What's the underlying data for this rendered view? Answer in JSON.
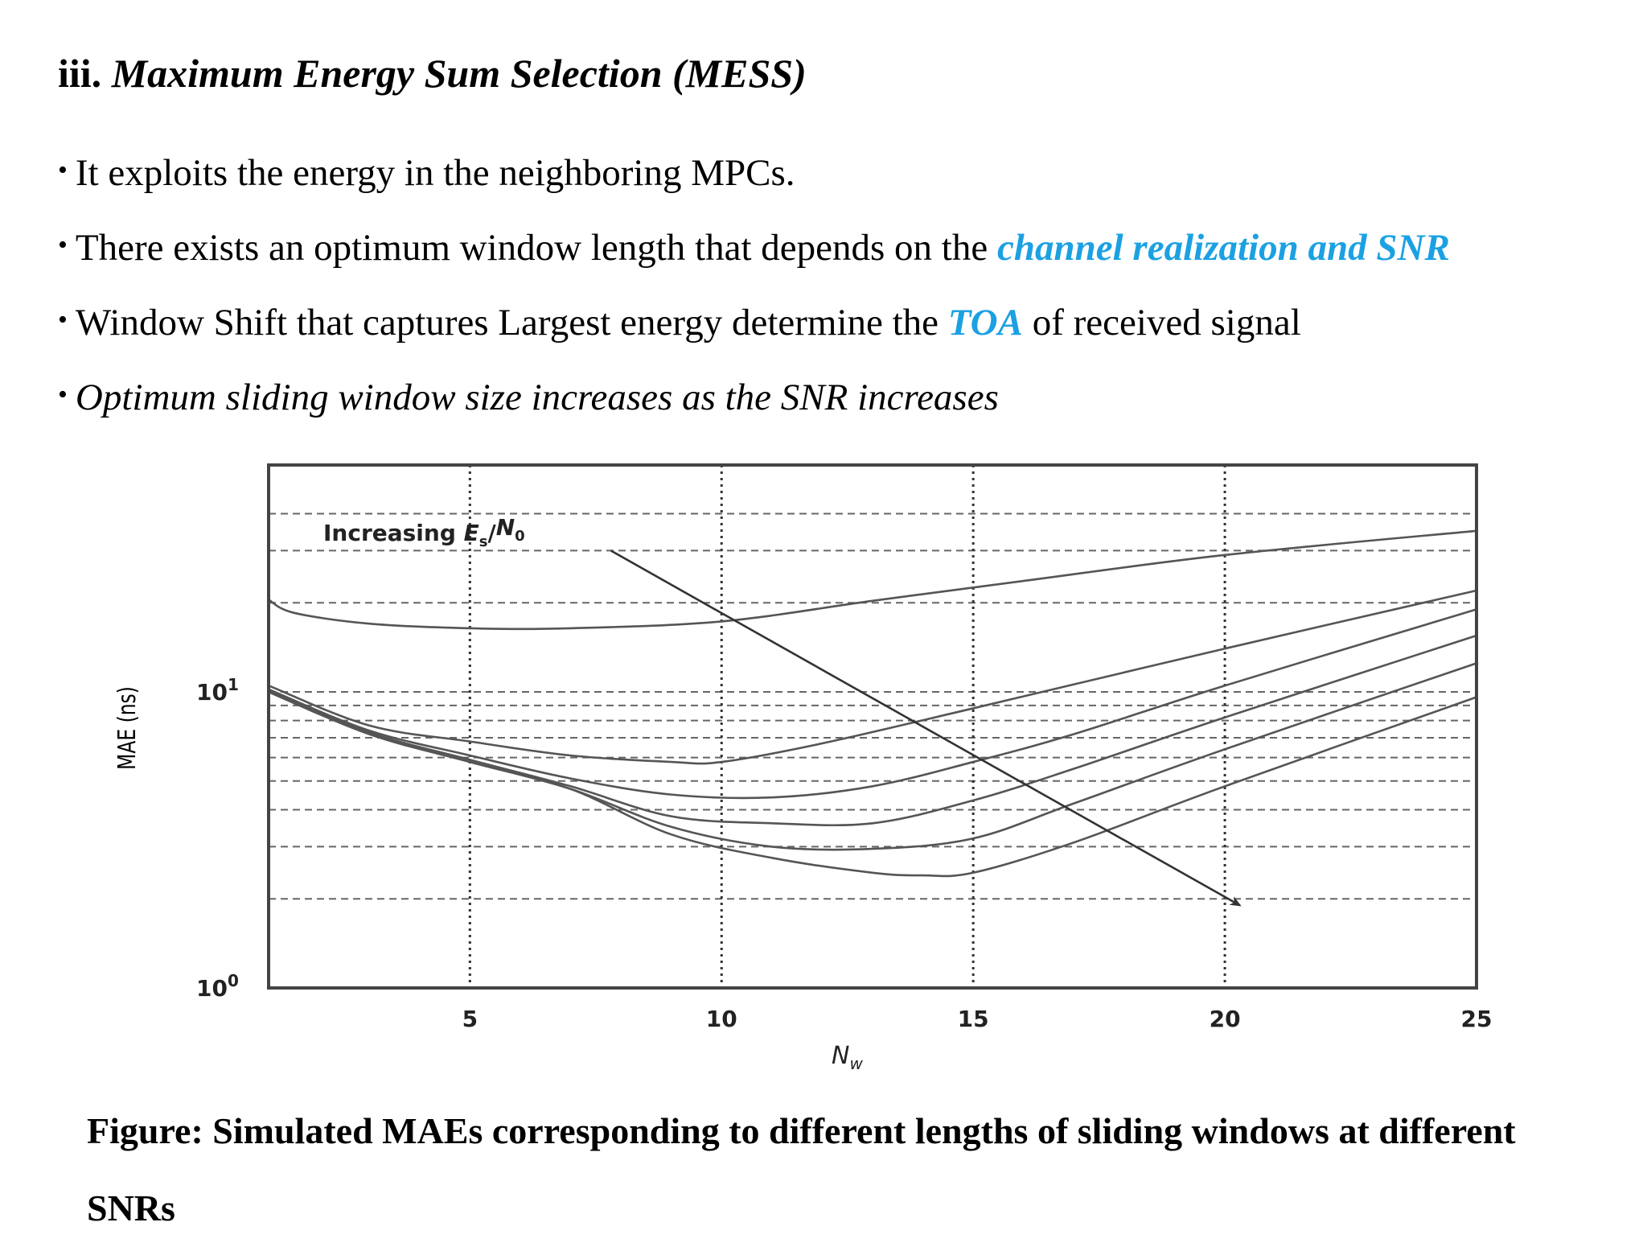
{
  "heading": {
    "prefix": "iii.",
    "title": "Maximum Energy Sum Selection (MESS)"
  },
  "bullets": [
    {
      "text": "It exploits the energy in the neighboring MPCs."
    },
    {
      "before": "There exists an optimum window length that depends on the ",
      "highlight": "channel realization and SNR",
      "after": ""
    },
    {
      "before": "Window Shift  that captures Largest energy determine the ",
      "highlight": "TOA",
      "after": " of received signal"
    },
    {
      "text": "Optimum sliding window size increases as the SNR increases"
    }
  ],
  "colors": {
    "highlight": "#1ba1e2",
    "curve": "#555555",
    "frame": "#444444"
  },
  "chart_data": {
    "type": "line",
    "xlabel": "N_w",
    "ylabel": "MAE (ns)",
    "xlim": [
      1,
      25
    ],
    "ylim": [
      1,
      40
    ],
    "yscale": "log",
    "grid": true,
    "x_ticks": [
      5,
      10,
      15,
      20,
      25
    ],
    "y_ticks": [
      {
        "value": 1,
        "base": "10",
        "exp": "0"
      },
      {
        "value": 10,
        "base": "10",
        "exp": "1"
      }
    ],
    "annotation": {
      "prefix": "Increasing ",
      "var": "E",
      "sub1": "s",
      "slash": "/",
      "var2": "N",
      "sub2": "0",
      "arrow_from": [
        7.8,
        30
      ],
      "arrow_to": [
        20.3,
        1.9
      ]
    },
    "series": [
      {
        "x": [
          1,
          1.5,
          3,
          5,
          7,
          10,
          13,
          16,
          20,
          25
        ],
        "y": [
          20.5,
          18.5,
          17,
          16.4,
          16.4,
          17.3,
          20.3,
          23.7,
          29,
          35
        ]
      },
      {
        "x": [
          1,
          3,
          5,
          7,
          9,
          10,
          12,
          15,
          20,
          25
        ],
        "y": [
          10.5,
          7.7,
          6.8,
          6.1,
          5.8,
          5.8,
          6.7,
          8.8,
          14,
          22
        ]
      },
      {
        "x": [
          1,
          3,
          5,
          7,
          9,
          11,
          13,
          15,
          17,
          20,
          25
        ],
        "y": [
          10.2,
          7.4,
          6.1,
          5.1,
          4.5,
          4.4,
          4.8,
          5.8,
          7.2,
          10.5,
          19
        ]
      },
      {
        "x": [
          1,
          3,
          5,
          7,
          9,
          11,
          13,
          15,
          17,
          20,
          25
        ],
        "y": [
          10.1,
          7.3,
          5.9,
          4.8,
          3.8,
          3.6,
          3.6,
          4.3,
          5.5,
          8.2,
          15.5
        ]
      },
      {
        "x": [
          1,
          3,
          5,
          7,
          9,
          11,
          13,
          15,
          17,
          20,
          25
        ],
        "y": [
          10,
          7.2,
          5.8,
          4.7,
          3.5,
          3,
          2.95,
          3.2,
          4.2,
          6.4,
          12.5
        ]
      },
      {
        "x": [
          1,
          3,
          5,
          7,
          9,
          11,
          13,
          14,
          15,
          17,
          20,
          25
        ],
        "y": [
          10,
          7.2,
          5.8,
          4.7,
          3.3,
          2.75,
          2.45,
          2.4,
          2.45,
          3.1,
          4.8,
          9.6
        ]
      }
    ]
  },
  "caption": "Figure: Simulated MAEs corresponding to different lengths of sliding windows at different SNRs"
}
